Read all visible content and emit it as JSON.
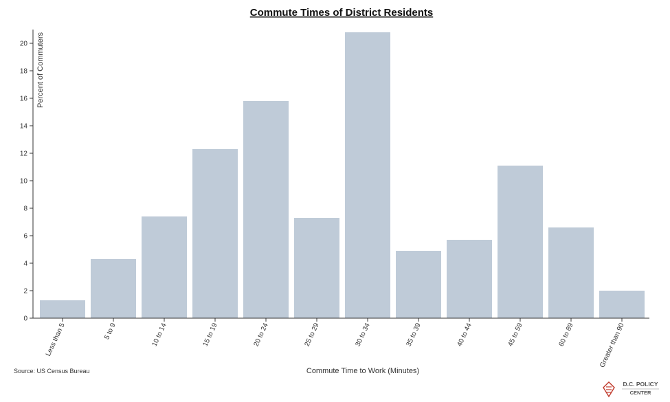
{
  "chart_data": {
    "type": "bar",
    "title": "Commute Times of District Residents",
    "xlabel": "Commute Time to Work (Minutes)",
    "ylabel": "Percent of Commuters",
    "categories": [
      "Less than 5",
      "5 to 9",
      "10 to 14",
      "15 to 19",
      "20 to 24",
      "25 to 29",
      "30 to 34",
      "35 to 39",
      "40 to 44",
      "45 to 59",
      "60 to 89",
      "Greater than 90"
    ],
    "values": [
      1.3,
      4.3,
      7.4,
      12.3,
      15.8,
      7.3,
      20.8,
      4.9,
      5.7,
      11.1,
      6.6,
      2.0
    ],
    "ylim": [
      0,
      21
    ],
    "yticks": [
      0,
      2,
      4,
      6,
      8,
      10,
      12,
      14,
      16,
      18,
      20
    ],
    "grid": false,
    "bar_color": "#bfcbd8",
    "axis_color": "#333333"
  },
  "source": "Source: US Census Bureau",
  "logo": {
    "line1": "D.C. POLICY",
    "line2": "CENTER",
    "icon": "dc-map-flag-icon"
  }
}
